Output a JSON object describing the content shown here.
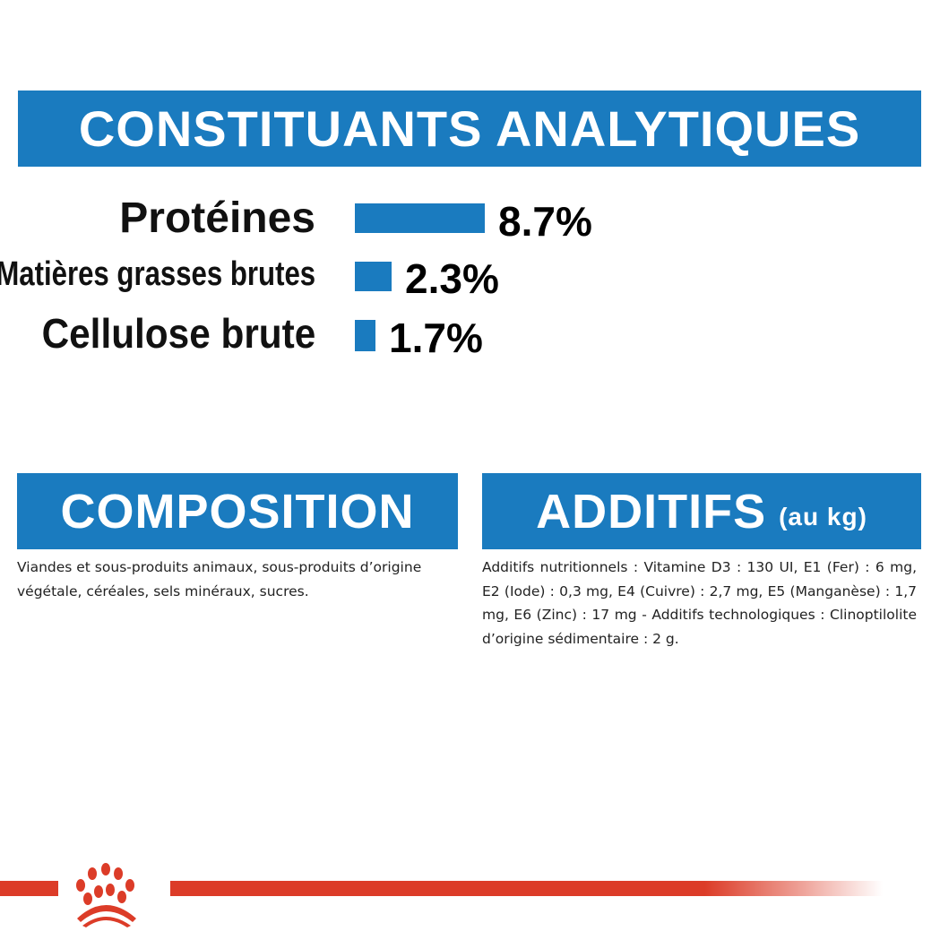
{
  "analytical": {
    "title": "CONSTITUANTS ANALYTIQUES",
    "items": [
      {
        "label": "Protéines",
        "value": "8.7%",
        "percent": 8.7
      },
      {
        "label": "Matières grasses brutes",
        "value": "2.3%",
        "percent": 2.3
      },
      {
        "label": "Cellulose brute",
        "value": "1.7%",
        "percent": 1.7
      }
    ]
  },
  "composition": {
    "title": "COMPOSITION",
    "text": "Viandes et sous-produits animaux, sous-produits d’origine végétale, céréales, sels minéraux, sucres."
  },
  "additives": {
    "title": "ADDITIFS",
    "unit": "(au kg)",
    "text": "Additifs nutritionnels : Vitamine D3 : 130 UI, E1 (Fer) : 6 mg, E2 (Iode) : 0,3 mg, E4 (Cuivre) : 2,7 mg, E5 (Manganèse) : 1,7 mg, E6 (Zinc) : 17 mg - Additifs technologiques : Clinoptilolite d’origine sédimentaire : 2 g."
  },
  "colors": {
    "brand_blue": "#1a7bbf",
    "brand_red": "#dc3c28"
  },
  "logo": {
    "icon": "royal-canin-crown-logo"
  }
}
